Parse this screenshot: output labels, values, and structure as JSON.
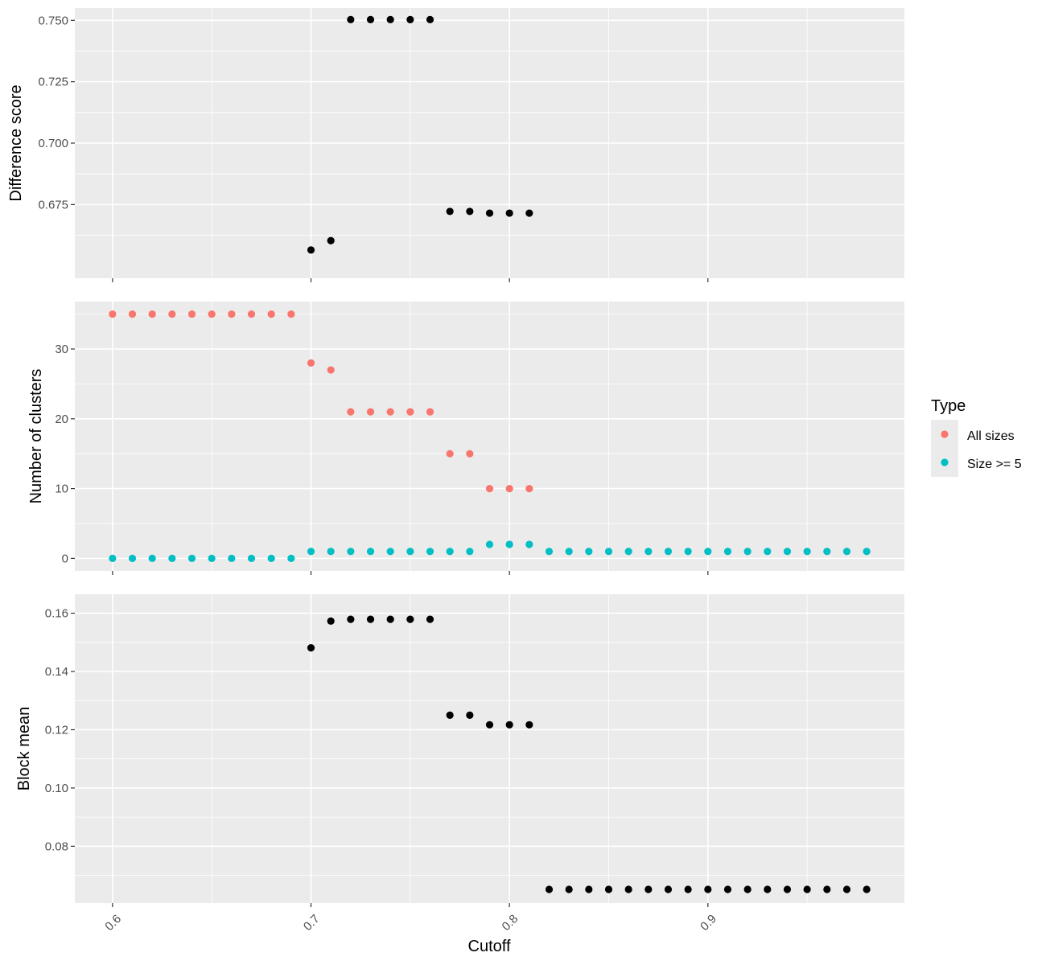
{
  "chart_data": [
    {
      "type": "scatter",
      "panel": "top",
      "ylabel": "Difference score",
      "ylim": [
        0.645,
        0.755
      ],
      "yticks": [
        0.675,
        0.7,
        0.725,
        0.75
      ],
      "ytick_labels": [
        "0.675",
        "0.700",
        "0.725",
        "0.750"
      ],
      "color": "#000000",
      "points": [
        [
          0.7,
          0.6565
        ],
        [
          0.71,
          0.6603
        ],
        [
          0.72,
          0.7503
        ],
        [
          0.73,
          0.7503
        ],
        [
          0.74,
          0.7503
        ],
        [
          0.75,
          0.7503
        ],
        [
          0.76,
          0.7503
        ],
        [
          0.77,
          0.6722
        ],
        [
          0.78,
          0.6722
        ],
        [
          0.79,
          0.6715
        ],
        [
          0.8,
          0.6715
        ],
        [
          0.81,
          0.6715
        ]
      ]
    },
    {
      "type": "scatter",
      "panel": "middle",
      "ylabel": "Number of clusters",
      "ylim": [
        -1.8,
        36.8
      ],
      "yticks": [
        0,
        10,
        20,
        30
      ],
      "ytick_labels": [
        "0",
        "10",
        "20",
        "30"
      ],
      "series": [
        {
          "name": "All sizes",
          "color": "#f8766d",
          "points": [
            [
              0.6,
              35
            ],
            [
              0.61,
              35
            ],
            [
              0.62,
              35
            ],
            [
              0.63,
              35
            ],
            [
              0.64,
              35
            ],
            [
              0.65,
              35
            ],
            [
              0.66,
              35
            ],
            [
              0.67,
              35
            ],
            [
              0.68,
              35
            ],
            [
              0.69,
              35
            ],
            [
              0.7,
              28
            ],
            [
              0.71,
              27
            ],
            [
              0.72,
              21
            ],
            [
              0.73,
              21
            ],
            [
              0.74,
              21
            ],
            [
              0.75,
              21
            ],
            [
              0.76,
              21
            ],
            [
              0.77,
              15
            ],
            [
              0.78,
              15
            ],
            [
              0.79,
              10
            ],
            [
              0.8,
              10
            ],
            [
              0.81,
              10
            ]
          ]
        },
        {
          "name": "Size >= 5",
          "color": "#00bfc4",
          "points": [
            [
              0.6,
              0
            ],
            [
              0.61,
              0
            ],
            [
              0.62,
              0
            ],
            [
              0.63,
              0
            ],
            [
              0.64,
              0
            ],
            [
              0.65,
              0
            ],
            [
              0.66,
              0
            ],
            [
              0.67,
              0
            ],
            [
              0.68,
              0
            ],
            [
              0.69,
              0
            ],
            [
              0.7,
              1
            ],
            [
              0.71,
              1
            ],
            [
              0.72,
              1
            ],
            [
              0.73,
              1
            ],
            [
              0.74,
              1
            ],
            [
              0.75,
              1
            ],
            [
              0.76,
              1
            ],
            [
              0.77,
              1
            ],
            [
              0.78,
              1
            ],
            [
              0.79,
              2
            ],
            [
              0.8,
              2
            ],
            [
              0.81,
              2
            ],
            [
              0.82,
              1
            ],
            [
              0.83,
              1
            ],
            [
              0.84,
              1
            ],
            [
              0.85,
              1
            ],
            [
              0.86,
              1
            ],
            [
              0.87,
              1
            ],
            [
              0.88,
              1
            ],
            [
              0.89,
              1
            ],
            [
              0.9,
              1
            ],
            [
              0.91,
              1
            ],
            [
              0.92,
              1
            ],
            [
              0.93,
              1
            ],
            [
              0.94,
              1
            ],
            [
              0.95,
              1
            ],
            [
              0.96,
              1
            ],
            [
              0.97,
              1
            ],
            [
              0.98,
              1
            ]
          ]
        }
      ]
    },
    {
      "type": "scatter",
      "panel": "bottom",
      "ylabel": "Block mean",
      "ylim": [
        0.0605,
        0.1665
      ],
      "yticks": [
        0.08,
        0.1,
        0.12,
        0.14,
        0.16
      ],
      "ytick_labels": [
        "0.08",
        "0.10",
        "0.12",
        "0.14",
        "0.16"
      ],
      "color": "#000000",
      "points": [
        [
          0.7,
          0.1481
        ],
        [
          0.71,
          0.1573
        ],
        [
          0.72,
          0.1579
        ],
        [
          0.73,
          0.1579
        ],
        [
          0.74,
          0.1579
        ],
        [
          0.75,
          0.1579
        ],
        [
          0.76,
          0.1579
        ],
        [
          0.77,
          0.125
        ],
        [
          0.78,
          0.125
        ],
        [
          0.79,
          0.1217
        ],
        [
          0.8,
          0.1217
        ],
        [
          0.81,
          0.1217
        ],
        [
          0.82,
          0.0652
        ],
        [
          0.83,
          0.0652
        ],
        [
          0.84,
          0.0652
        ],
        [
          0.85,
          0.0652
        ],
        [
          0.86,
          0.0652
        ],
        [
          0.87,
          0.0652
        ],
        [
          0.88,
          0.0652
        ],
        [
          0.89,
          0.0652
        ],
        [
          0.9,
          0.0652
        ],
        [
          0.91,
          0.0652
        ],
        [
          0.92,
          0.0652
        ],
        [
          0.93,
          0.0652
        ],
        [
          0.94,
          0.0652
        ],
        [
          0.95,
          0.0652
        ],
        [
          0.96,
          0.0652
        ],
        [
          0.97,
          0.0652
        ],
        [
          0.98,
          0.0652
        ]
      ]
    }
  ],
  "shared_x": {
    "xlabel": "Cutoff",
    "xlim": [
      0.581,
      0.999
    ],
    "xticks": [
      0.6,
      0.7,
      0.8,
      0.9
    ],
    "xtick_labels": [
      "0.6",
      "0.7",
      "0.8",
      "0.9"
    ]
  },
  "legend": {
    "title": "Type",
    "placement": "right",
    "items": [
      {
        "label": "All sizes",
        "color": "#f8766d"
      },
      {
        "label": "Size >= 5",
        "color": "#00bfc4"
      }
    ]
  },
  "style": {
    "panel_bg": "#ebebeb",
    "grid_color": "#ffffff",
    "grid": true
  }
}
